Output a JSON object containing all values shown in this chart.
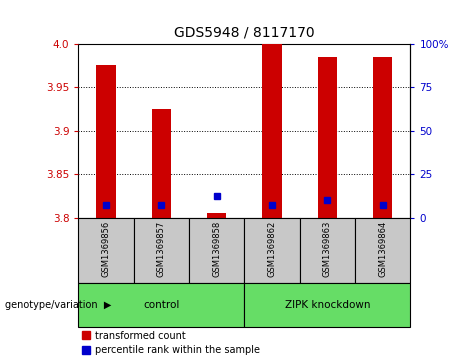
{
  "title": "GDS5948 / 8117170",
  "samples": [
    "GSM1369856",
    "GSM1369857",
    "GSM1369858",
    "GSM1369862",
    "GSM1369863",
    "GSM1369864"
  ],
  "red_values": [
    3.975,
    3.925,
    3.805,
    4.0,
    3.985,
    3.985
  ],
  "blue_values": [
    3.815,
    3.815,
    3.825,
    3.815,
    3.82,
    3.815
  ],
  "ymin": 3.8,
  "ymax": 4.0,
  "yticks_left": [
    3.8,
    3.85,
    3.9,
    3.95,
    4.0
  ],
  "yticks_right": [
    0,
    25,
    50,
    75,
    100
  ],
  "left_color": "#cc0000",
  "right_color": "#0000cc",
  "bar_width": 0.35,
  "blue_marker_size": 5,
  "legend_red_label": "transformed count",
  "legend_blue_label": "percentile rank within the sample",
  "group_label_text": "genotype/variation",
  "group_labels": [
    "control",
    "ZIPK knockdown"
  ],
  "group_ranges": [
    [
      0,
      2
    ],
    [
      3,
      5
    ]
  ],
  "group_color": "#66dd66",
  "sample_box_color": "#c8c8c8",
  "background_color": "#ffffff"
}
